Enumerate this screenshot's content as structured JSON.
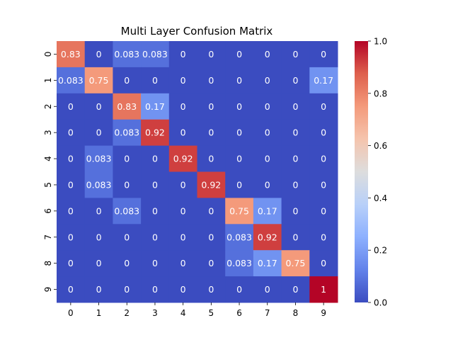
{
  "chart_data": {
    "type": "heatmap",
    "title": "Multi Layer Confusion Matrix",
    "xlabel": "",
    "ylabel": "",
    "x_labels": [
      "0",
      "1",
      "2",
      "3",
      "4",
      "5",
      "6",
      "7",
      "8",
      "9"
    ],
    "y_labels": [
      "0",
      "1",
      "2",
      "3",
      "4",
      "5",
      "6",
      "7",
      "8",
      "9"
    ],
    "values": [
      [
        0.83,
        0,
        0.083,
        0.083,
        0,
        0,
        0,
        0,
        0,
        0
      ],
      [
        0.083,
        0.75,
        0,
        0,
        0,
        0,
        0,
        0,
        0,
        0.17
      ],
      [
        0,
        0,
        0.83,
        0.17,
        0,
        0,
        0,
        0,
        0,
        0
      ],
      [
        0,
        0,
        0.083,
        0.92,
        0,
        0,
        0,
        0,
        0,
        0
      ],
      [
        0,
        0.083,
        0,
        0,
        0.92,
        0,
        0,
        0,
        0,
        0
      ],
      [
        0,
        0.083,
        0,
        0,
        0,
        0.92,
        0,
        0,
        0,
        0
      ],
      [
        0,
        0,
        0.083,
        0,
        0,
        0,
        0.75,
        0.17,
        0,
        0
      ],
      [
        0,
        0,
        0,
        0,
        0,
        0,
        0.083,
        0.92,
        0,
        0
      ],
      [
        0,
        0,
        0,
        0,
        0,
        0,
        0.083,
        0.17,
        0.75,
        0
      ],
      [
        0,
        0,
        0,
        0,
        0,
        0,
        0,
        0,
        0,
        1
      ]
    ],
    "cell_labels": [
      [
        "0.83",
        "0",
        "0.083",
        "0.083",
        "0",
        "0",
        "0",
        "0",
        "0",
        "0"
      ],
      [
        "0.083",
        "0.75",
        "0",
        "0",
        "0",
        "0",
        "0",
        "0",
        "0",
        "0.17"
      ],
      [
        "0",
        "0",
        "0.83",
        "0.17",
        "0",
        "0",
        "0",
        "0",
        "0",
        "0"
      ],
      [
        "0",
        "0",
        "0.083",
        "0.92",
        "0",
        "0",
        "0",
        "0",
        "0",
        "0"
      ],
      [
        "0",
        "0.083",
        "0",
        "0",
        "0.92",
        "0",
        "0",
        "0",
        "0",
        "0"
      ],
      [
        "0",
        "0.083",
        "0",
        "0",
        "0",
        "0.92",
        "0",
        "0",
        "0",
        "0"
      ],
      [
        "0",
        "0",
        "0.083",
        "0",
        "0",
        "0",
        "0.75",
        "0.17",
        "0",
        "0"
      ],
      [
        "0",
        "0",
        "0",
        "0",
        "0",
        "0",
        "0.083",
        "0.92",
        "0",
        "0"
      ],
      [
        "0",
        "0",
        "0",
        "0",
        "0",
        "0",
        "0.083",
        "0.17",
        "0.75",
        "0"
      ],
      [
        "0",
        "0",
        "0",
        "0",
        "0",
        "0",
        "0",
        "0",
        "0",
        "1"
      ]
    ],
    "colormap": "coolwarm",
    "vmin": 0,
    "vmax": 1,
    "colorbar_ticks": [
      "0.0",
      "0.2",
      "0.4",
      "0.6",
      "0.8",
      "1.0"
    ],
    "grid": false
  }
}
